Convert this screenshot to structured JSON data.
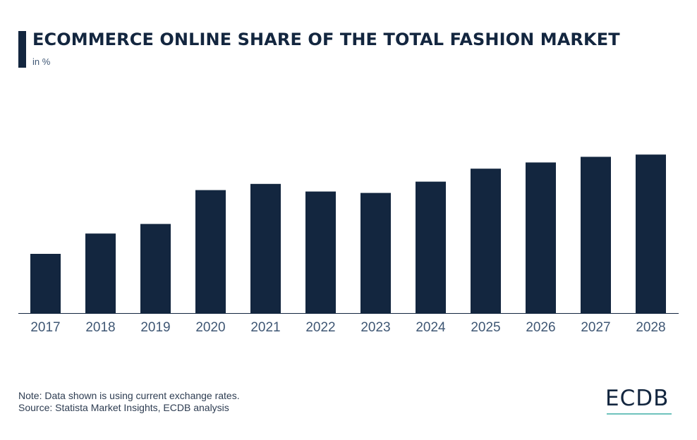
{
  "header": {
    "title": "ECOMMERCE ONLINE SHARE OF THE TOTAL FASHION MARKET",
    "subtitle": "in %"
  },
  "footer": {
    "note": "Note: Data shown is using current exchange rates.",
    "source": "Source: Statista Market Insights, ECDB analysis",
    "logo": "ECDB"
  },
  "colors": {
    "bar": "#13263f",
    "axis": "#13263f",
    "tick_label": "#3f5774",
    "logo_accent": "#6fc3bd"
  },
  "chart_data": {
    "type": "bar",
    "title": "ECOMMERCE ONLINE SHARE OF THE TOTAL FASHION MARKET",
    "subtitle": "in %",
    "xlabel": "",
    "ylabel": "",
    "categories": [
      "2017",
      "2018",
      "2019",
      "2020",
      "2021",
      "2022",
      "2023",
      "2024",
      "2025",
      "2026",
      "2027",
      "2028"
    ],
    "values": [
      21.0,
      28.2,
      31.6,
      43.6,
      45.8,
      43.1,
      42.6,
      46.6,
      51.2,
      53.4,
      55.4,
      56.2
    ],
    "ylim": [
      0,
      80
    ],
    "grid": false,
    "legend": "none"
  }
}
